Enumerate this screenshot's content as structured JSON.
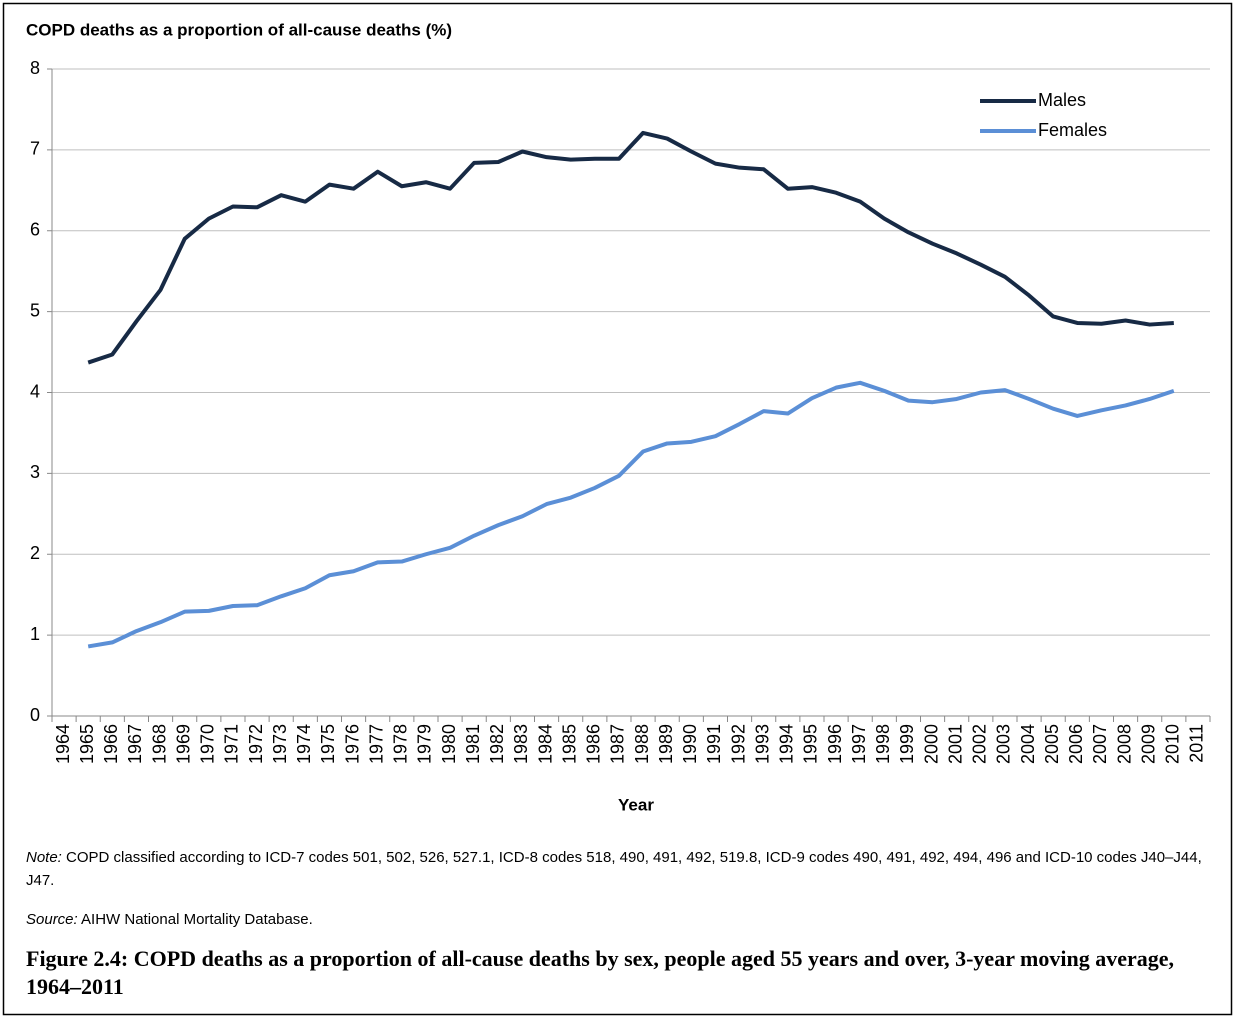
{
  "chart_data": {
    "type": "line",
    "title": "COPD deaths as a proportion of all-cause deaths (%)",
    "x_label": "Year",
    "categories": [
      "1964",
      "1965",
      "1966",
      "1967",
      "1968",
      "1969",
      "1970",
      "1971",
      "1972",
      "1973",
      "1974",
      "1975",
      "1976",
      "1977",
      "1978",
      "1979",
      "1980",
      "1981",
      "1982",
      "1983",
      "1984",
      "1985",
      "1986",
      "1987",
      "1988",
      "1989",
      "1990",
      "1991",
      "1992",
      "1993",
      "1994",
      "1995",
      "1996",
      "1997",
      "1998",
      "1999",
      "2000",
      "2001",
      "2002",
      "2003",
      "2004",
      "2005",
      "2006",
      "2007",
      "2008",
      "2009",
      "2010",
      "2011"
    ],
    "series": [
      {
        "name": "Males",
        "color": "#172a45",
        "values": [
          null,
          4.37,
          4.47,
          4.88,
          5.27,
          5.9,
          6.15,
          6.3,
          6.29,
          6.44,
          6.36,
          6.57,
          6.52,
          6.73,
          6.55,
          6.6,
          6.52,
          6.84,
          6.85,
          6.98,
          6.91,
          6.88,
          6.89,
          6.89,
          7.21,
          7.14,
          6.98,
          6.83,
          6.78,
          6.76,
          6.52,
          6.54,
          6.47,
          6.36,
          6.15,
          5.98,
          5.84,
          5.72,
          5.58,
          5.43,
          5.2,
          4.94,
          4.86,
          4.85,
          4.89,
          4.84,
          4.86,
          null
        ]
      },
      {
        "name": "Females",
        "color": "#5b8fd6",
        "values": [
          null,
          0.86,
          0.91,
          1.05,
          1.16,
          1.29,
          1.3,
          1.36,
          1.37,
          1.48,
          1.58,
          1.74,
          1.79,
          1.9,
          1.91,
          2.0,
          2.08,
          2.23,
          2.36,
          2.47,
          2.62,
          2.7,
          2.82,
          2.97,
          3.27,
          3.37,
          3.39,
          3.46,
          3.61,
          3.77,
          3.74,
          3.93,
          4.06,
          4.12,
          4.02,
          3.9,
          3.88,
          3.92,
          4.0,
          4.03,
          3.92,
          3.8,
          3.71,
          3.78,
          3.84,
          3.92,
          4.02,
          null
        ]
      }
    ],
    "ylim": [
      0,
      8
    ],
    "yticks": [
      0,
      1,
      2,
      3,
      4,
      5,
      6,
      7,
      8
    ],
    "grid": true,
    "legend": "upper right"
  },
  "note_label": "Note:",
  "note": "COPD classified according to ICD-7 codes 501, 502, 526, 527.1, ICD-8 codes 518, 490, 491, 492, 519.8, ICD-9 codes 490, 491, 492, 494, 496 and ICD-10 codes J40–J44, J47.",
  "source_label": "Source:",
  "source": "AIHW National Mortality Database.",
  "caption": "Figure 2.4: COPD deaths as a proportion of all-cause deaths by sex, people aged 55 years and over, 3-year moving average, 1964–2011"
}
